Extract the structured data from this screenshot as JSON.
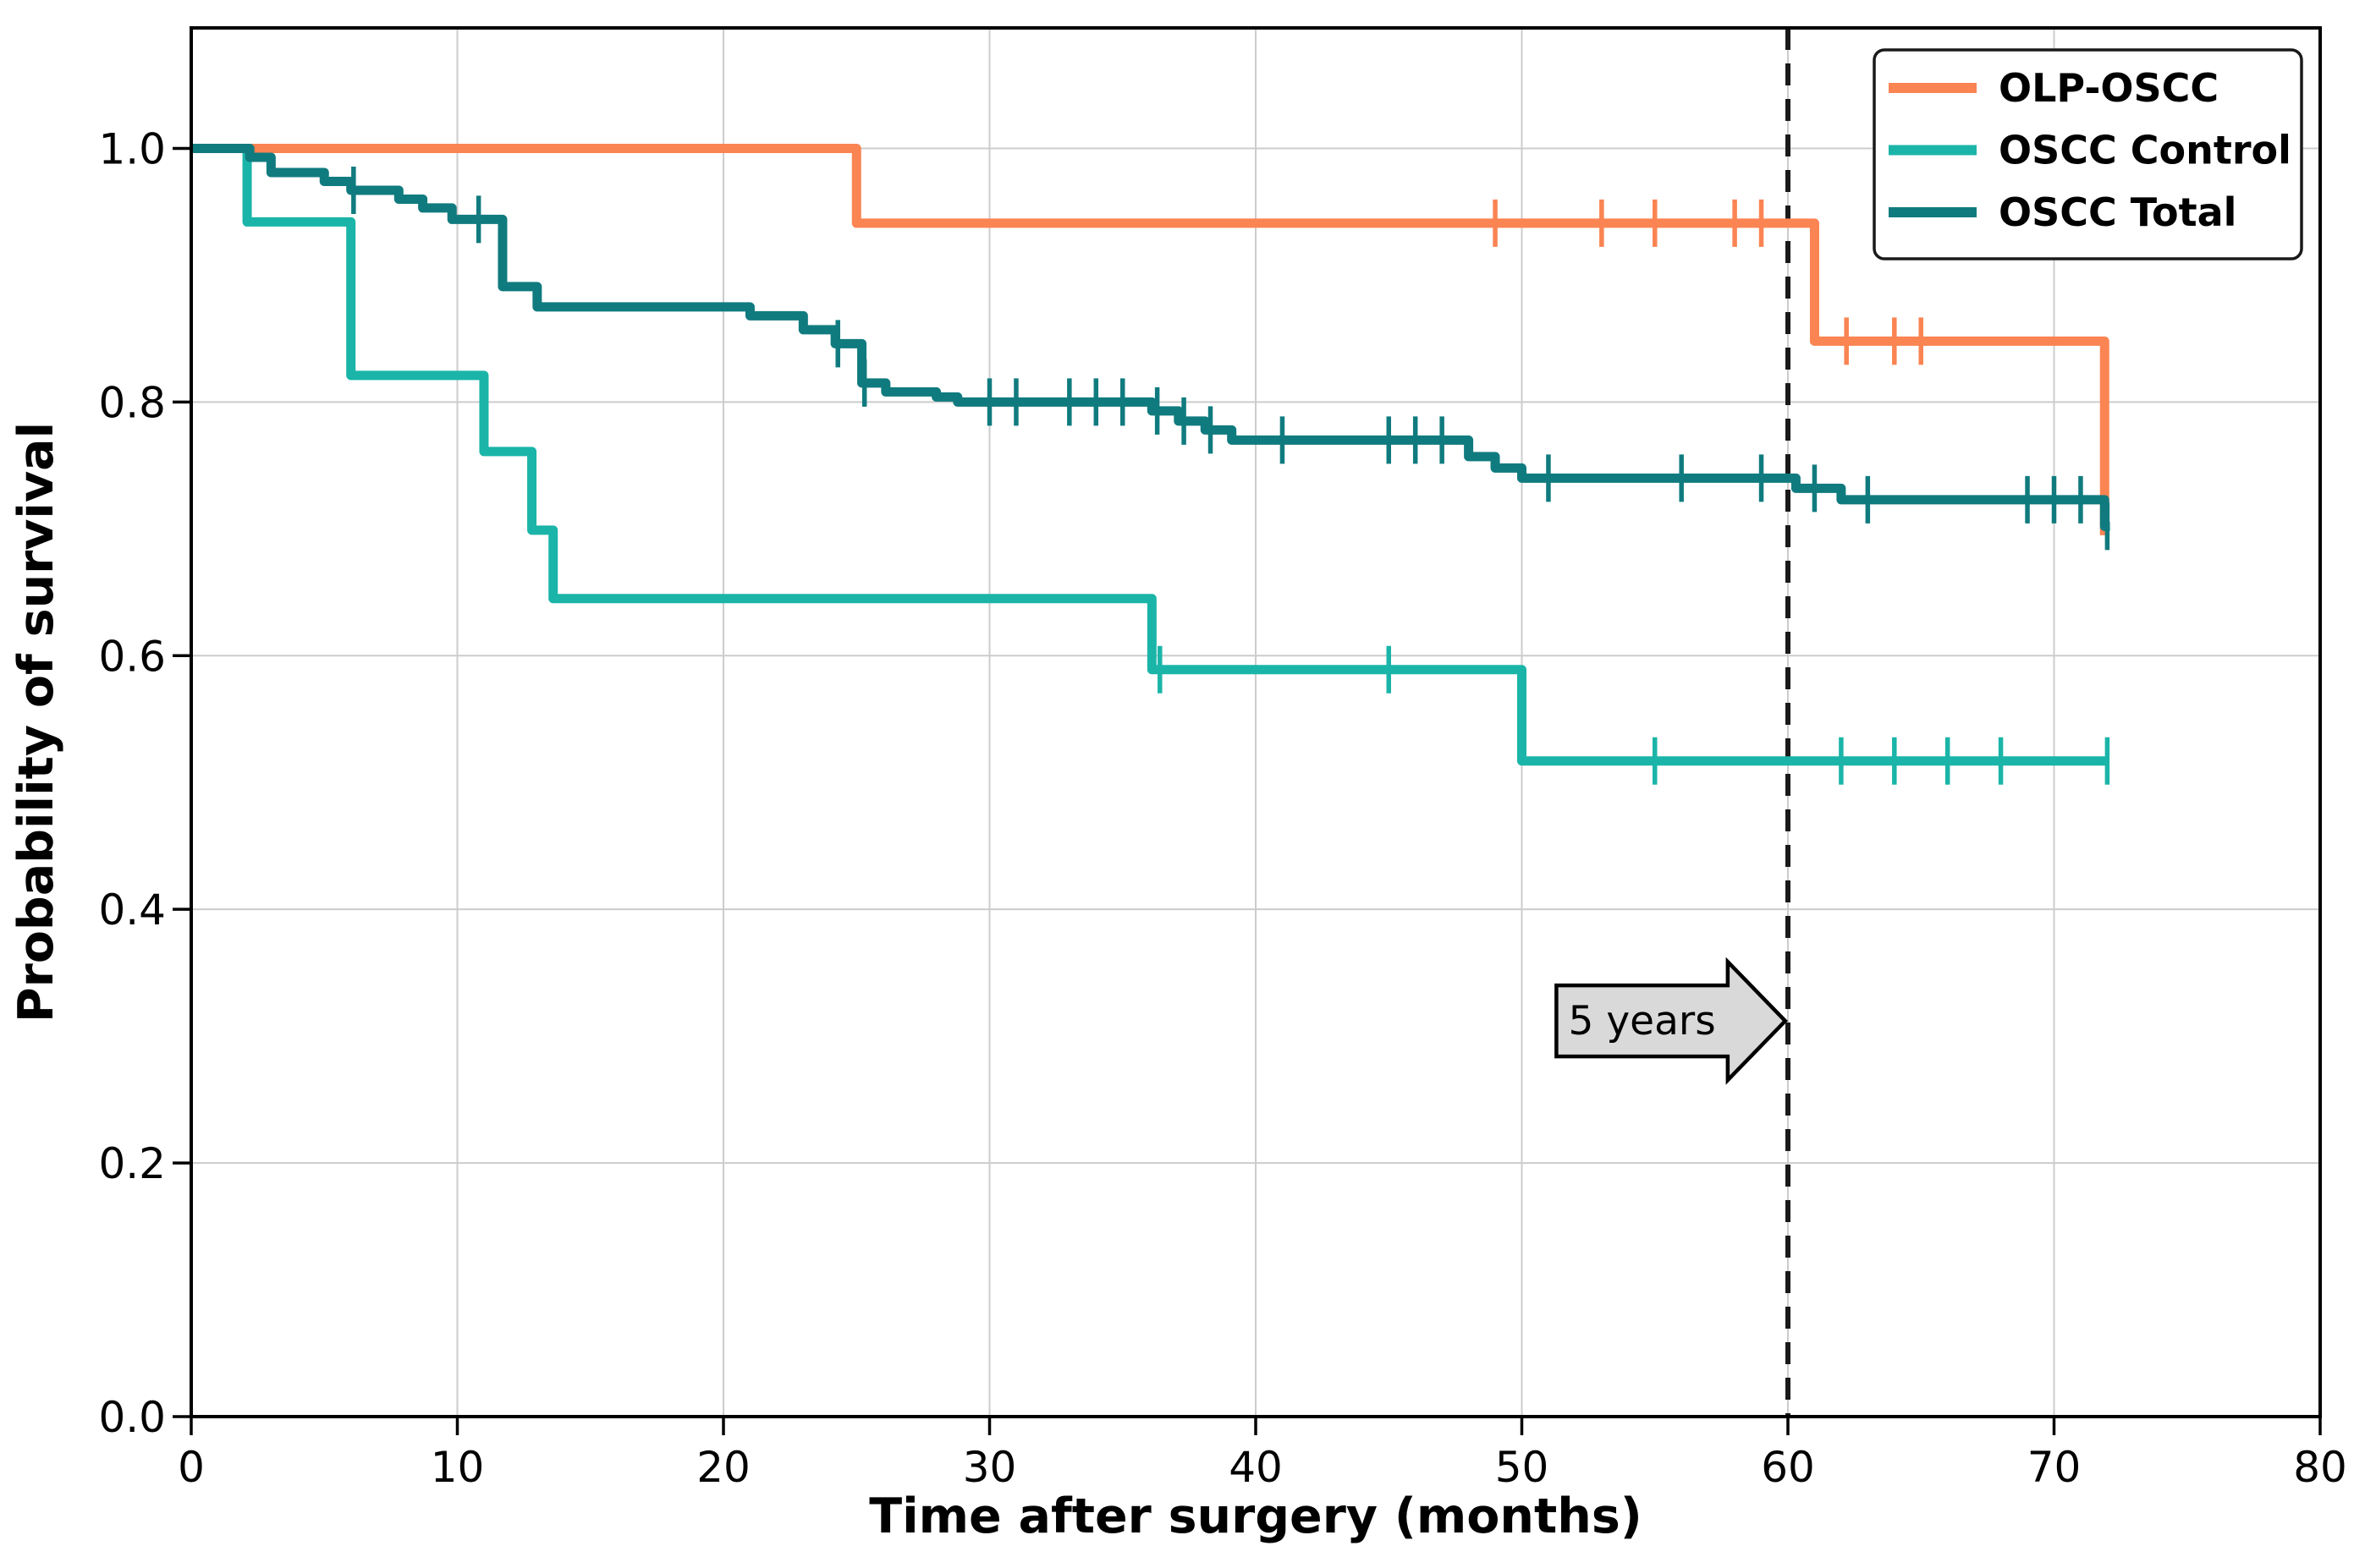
{
  "chart_data": {
    "type": "line",
    "subtype": "kaplan_meier_survival_step",
    "title": "",
    "xlabel": "Time after surgery (months)",
    "ylabel": "Probability of survival",
    "xlim": [
      0,
      80
    ],
    "ylim": [
      0,
      1.095
    ],
    "xticks": [
      0,
      10,
      20,
      30,
      40,
      50,
      60,
      70,
      80
    ],
    "yticks": [
      0.0,
      0.2,
      0.4,
      0.6,
      0.8,
      1.0
    ],
    "grid": true,
    "grid_color": "#cccccc",
    "spine_color": "#000000",
    "legend": {
      "position": "upper right",
      "entries": [
        "OLP-OSCC",
        "OSCC Control",
        "OSCC Total"
      ]
    },
    "series": [
      {
        "name": "OLP-OSCC",
        "color": "#FA8452",
        "start": [
          0,
          1.0
        ],
        "steps": [
          [
            25,
            0.941
          ],
          [
            61,
            0.848
          ],
          [
            71.9,
            0.695
          ]
        ],
        "end_t": 71.9,
        "censors": [
          [
            49,
            0.941
          ],
          [
            53,
            0.941
          ],
          [
            55,
            0.941
          ],
          [
            58,
            0.941
          ],
          [
            59,
            0.941
          ],
          [
            62.2,
            0.848
          ],
          [
            64,
            0.848
          ],
          [
            65,
            0.848
          ]
        ]
      },
      {
        "name": "OSCC Control",
        "color": "#1AB5A8",
        "start": [
          0,
          1.0
        ],
        "steps": [
          [
            2.1,
            0.942
          ],
          [
            6,
            0.821
          ],
          [
            11,
            0.761
          ],
          [
            12.8,
            0.699
          ],
          [
            13.6,
            0.645
          ],
          [
            36.1,
            0.589
          ],
          [
            50,
            0.517
          ]
        ],
        "end_t": 72,
        "censors": [
          [
            36.4,
            0.589
          ],
          [
            45,
            0.589
          ],
          [
            55,
            0.517
          ],
          [
            62,
            0.517
          ],
          [
            64,
            0.517
          ],
          [
            66,
            0.517
          ],
          [
            68,
            0.517
          ],
          [
            72,
            0.517
          ]
        ]
      },
      {
        "name": "OSCC Total",
        "color": "#107B7F",
        "start": [
          0,
          1.0
        ],
        "steps": [
          [
            2.2,
            0.993
          ],
          [
            3,
            0.981
          ],
          [
            5,
            0.974
          ],
          [
            6,
            0.967
          ],
          [
            7.8,
            0.96
          ],
          [
            8.7,
            0.953
          ],
          [
            9.8,
            0.944
          ],
          [
            11.7,
            0.891
          ],
          [
            13,
            0.875
          ],
          [
            21,
            0.868
          ],
          [
            23,
            0.857
          ],
          [
            24.2,
            0.846
          ],
          [
            25.2,
            0.815
          ],
          [
            26.1,
            0.808
          ],
          [
            28,
            0.804
          ],
          [
            28.8,
            0.8
          ],
          [
            36.1,
            0.793
          ],
          [
            37.1,
            0.785
          ],
          [
            38.1,
            0.778
          ],
          [
            39.1,
            0.77
          ],
          [
            48,
            0.757
          ],
          [
            49,
            0.748
          ],
          [
            50,
            0.74
          ],
          [
            60.3,
            0.732
          ],
          [
            62,
            0.723
          ],
          [
            71.9,
            0.702
          ]
        ],
        "end_t": 72.1,
        "censors": [
          [
            6.1,
            0.967
          ],
          [
            10.8,
            0.944
          ],
          [
            24.3,
            0.846
          ],
          [
            25.3,
            0.815
          ],
          [
            30,
            0.8
          ],
          [
            31,
            0.8
          ],
          [
            33,
            0.8
          ],
          [
            34,
            0.8
          ],
          [
            35,
            0.8
          ],
          [
            36.3,
            0.793
          ],
          [
            37.3,
            0.785
          ],
          [
            38.3,
            0.778
          ],
          [
            41,
            0.77
          ],
          [
            45,
            0.77
          ],
          [
            46,
            0.77
          ],
          [
            47,
            0.77
          ],
          [
            51,
            0.74
          ],
          [
            56,
            0.74
          ],
          [
            59,
            0.74
          ],
          [
            61,
            0.732
          ],
          [
            63,
            0.723
          ],
          [
            69,
            0.723
          ],
          [
            70,
            0.723
          ],
          [
            71,
            0.723
          ],
          [
            72,
            0.702
          ]
        ]
      }
    ],
    "annotations": {
      "dashed_line_x": 60,
      "dashed_line_color": "#1a1a1a",
      "arrow": {
        "label": "5 years",
        "tail_x": 51.3,
        "tip_x": 59.9,
        "y": 0.312,
        "fill": "#d9d9d9",
        "stroke": "#000000"
      }
    }
  }
}
